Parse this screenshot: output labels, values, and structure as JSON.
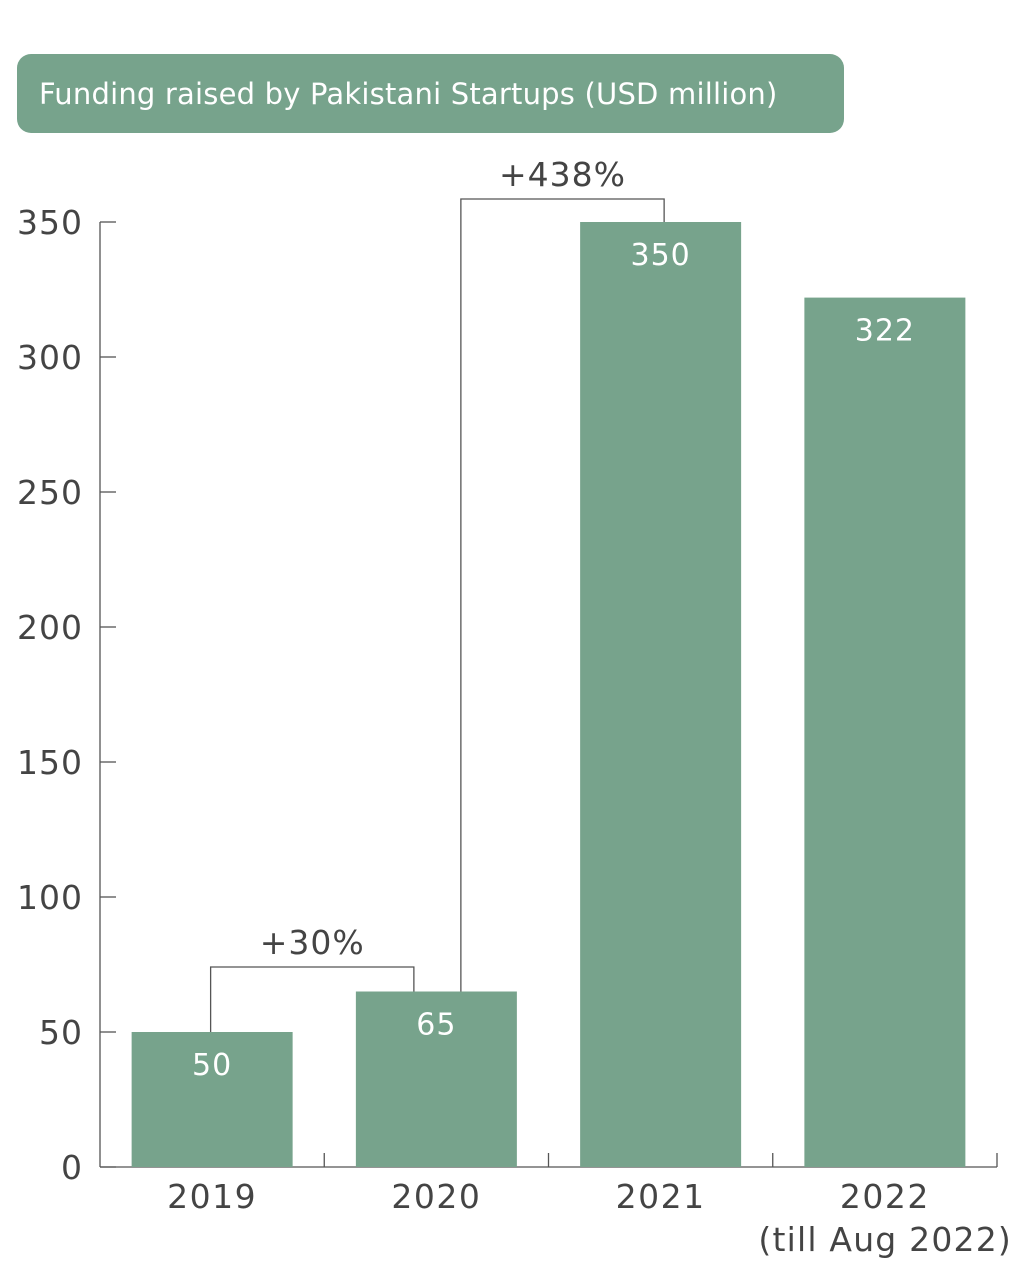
{
  "header": {
    "title": "Funding raised by Pakistani Startups (USD million)"
  },
  "chart_data": {
    "type": "bar",
    "title": "Funding raised by Pakistani Startups (USD million)",
    "xlabel": "",
    "ylabel": "",
    "categories": [
      "2019",
      "2020",
      "2021",
      "2022"
    ],
    "category_sublabels": [
      "",
      "",
      "",
      "(till Aug 2022)"
    ],
    "values": [
      50,
      65,
      350,
      322
    ],
    "data_labels": [
      "50",
      "65",
      "350",
      "322"
    ],
    "ylim": [
      0,
      350
    ],
    "yticks": [
      0,
      50,
      100,
      150,
      200,
      250,
      300,
      350
    ],
    "grid": false,
    "legend": "none",
    "annotations": [
      {
        "from": "2019",
        "to": "2020",
        "text": "+30%"
      },
      {
        "from": "2020",
        "to": "2021",
        "text": "+438%"
      }
    ],
    "colors": {
      "bar": "#77a38c",
      "axis": "#555555",
      "text": "#444444",
      "bar_label": "#ffffff"
    }
  }
}
